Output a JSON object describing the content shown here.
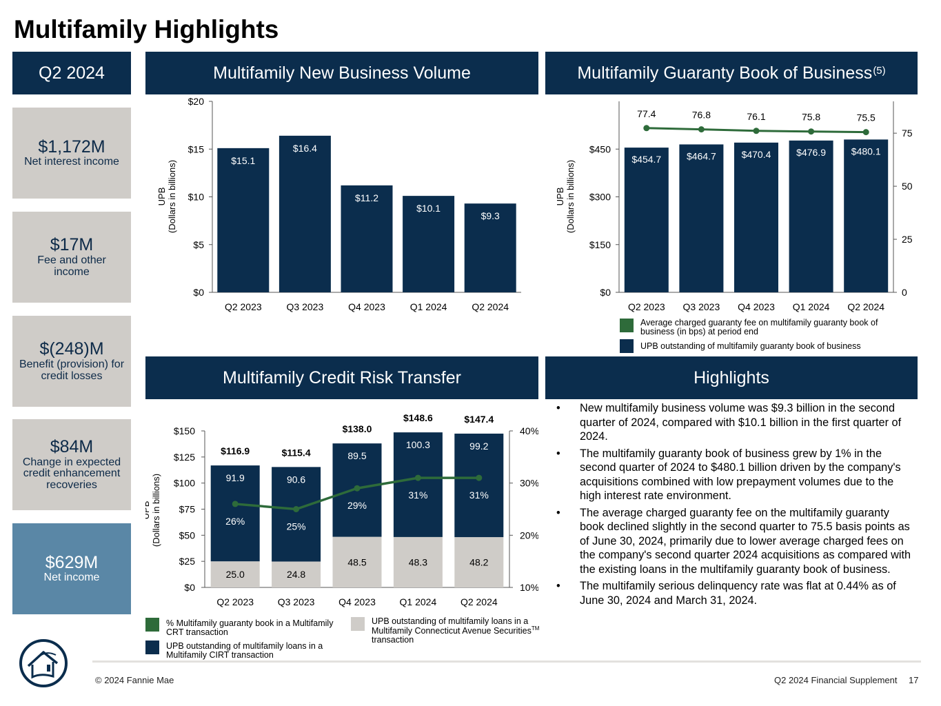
{
  "page": {
    "title": "Multifamily Highlights",
    "footer_left": "© 2024 Fannie Mae",
    "footer_right": "Q2 2024 Financial Supplement",
    "page_number": "17"
  },
  "quarter_panel": {
    "header": "Q2 2024",
    "kpis": [
      {
        "value": "$1,172M",
        "label": "Net interest income"
      },
      {
        "value": "$17M",
        "label": "Fee and other income"
      },
      {
        "value": "$(248)M",
        "label": "Benefit (provision) for credit losses"
      },
      {
        "value": "$84M",
        "label": "Change in expected credit enhancement recoveries"
      },
      {
        "value": "$629M",
        "label": "Net income"
      }
    ]
  },
  "headers": {
    "new_business": "Multifamily New Business Volume",
    "guaranty_book": "Multifamily Guaranty Book of Business",
    "guaranty_book_note": "(5)",
    "crt": "Multifamily Credit Risk Transfer",
    "highlights": "Highlights"
  },
  "legends": {
    "guaranty_fee": "Average charged guaranty fee on multifamily guaranty book of business (in bps) at period end",
    "guaranty_upb": "UPB outstanding of multifamily guaranty book of business",
    "crt_pct": "% Multifamily guaranty book in a Multifamily CRT transaction",
    "crt_cirt": "UPB outstanding of multifamily loans in a Multifamily CIRT transaction",
    "crt_cas": "UPB outstanding of multifamily loans in a Multifamily Connecticut Avenue Securities",
    "crt_cas_tm": "TM",
    "crt_cas_suffix": "transaction"
  },
  "highlights": [
    "New multifamily business volume was $9.3 billion in the second quarter of 2024, compared with $10.1 billion in the first quarter of 2024.",
    "The multifamily guaranty book of business grew by 1% in the second quarter of 2024 to $480.1 billion driven by the company's acquisitions combined with low prepayment volumes due to the high interest rate environment.",
    "The average charged guaranty fee on the multifamily guaranty book declined slightly in the second quarter to 75.5 basis points as of June 30, 2024, primarily due to lower average charged fees on the company's second quarter 2024 acquisitions as compared with the existing loans in the multifamily guaranty book of business.",
    "The multifamily serious delinquency rate was flat at 0.44% as of June 30, 2024 and March 31, 2024."
  ],
  "colors": {
    "navy": "#0b2d4d",
    "green": "#2e6b3a",
    "gray": "#cfccc8",
    "kpi_blue": "#5a87a6"
  },
  "chart_data": [
    {
      "id": "new_business_volume",
      "type": "bar",
      "categories": [
        "Q2 2023",
        "Q3 2023",
        "Q4 2023",
        "Q1 2024",
        "Q2 2024"
      ],
      "values": [
        15.1,
        16.4,
        11.2,
        10.1,
        9.3
      ],
      "data_labels": [
        "$15.1",
        "$16.4",
        "$11.2",
        "$10.1",
        "$9.3"
      ],
      "ylabel": "UPB\n(Dollars in billions)",
      "ylabel_lines": [
        "UPB",
        "(Dollars in billions)"
      ],
      "ylim": [
        0,
        20
      ],
      "yticks": [
        0,
        5,
        10,
        15,
        20
      ],
      "ytick_labels": [
        "$0",
        "$5",
        "$10",
        "$15",
        "$20"
      ]
    },
    {
      "id": "guaranty_book",
      "type": "bar",
      "categories": [
        "Q2 2023",
        "Q3 2023",
        "Q4 2023",
        "Q1 2024",
        "Q2 2024"
      ],
      "series": [
        {
          "name": "UPB outstanding of multifamily guaranty book of business",
          "axis": "left",
          "type": "bar",
          "values": [
            454.7,
            464.7,
            470.4,
            476.9,
            480.1
          ],
          "labels": [
            "$454.7",
            "$464.7",
            "$470.4",
            "$476.9",
            "$480.1"
          ]
        },
        {
          "name": "Average charged guaranty fee on multifamily guaranty book of business (in bps) at period end",
          "axis": "right",
          "type": "line",
          "values": [
            77.4,
            76.8,
            76.1,
            75.8,
            75.5
          ],
          "labels": [
            "77.4",
            "76.8",
            "76.1",
            "75.8",
            "75.5"
          ]
        }
      ],
      "ylabel_lines": [
        "UPB",
        "(Dollars in billions)"
      ],
      "ylim": [
        0,
        600
      ],
      "yticks": [
        0,
        150,
        300,
        450
      ],
      "ytick_labels": [
        "$0",
        "$150",
        "$300",
        "$450"
      ],
      "y2lim": [
        0,
        90
      ],
      "y2ticks": [
        0,
        25,
        50,
        75
      ],
      "y2tick_labels": [
        "0",
        "25",
        "50",
        "75"
      ]
    },
    {
      "id": "credit_risk_transfer",
      "type": "bar",
      "stacked": true,
      "categories": [
        "Q2 2023",
        "Q3 2023",
        "Q4 2023",
        "Q1 2024",
        "Q2 2024"
      ],
      "series": [
        {
          "name": "UPB outstanding of multifamily loans in a Multifamily Connecticut Avenue Securities transaction",
          "type": "bar",
          "values": [
            25.0,
            24.8,
            48.5,
            48.3,
            48.2
          ],
          "labels": [
            "25.0",
            "24.8",
            "48.5",
            "48.3",
            "48.2"
          ]
        },
        {
          "name": "UPB outstanding of multifamily loans in a Multifamily CIRT transaction",
          "type": "bar",
          "values": [
            91.9,
            90.6,
            89.5,
            100.3,
            99.2
          ],
          "labels": [
            "91.9",
            "90.6",
            "89.5",
            "100.3",
            "99.2"
          ]
        },
        {
          "name": "% Multifamily guaranty book in a Multifamily CRT transaction",
          "type": "line",
          "axis": "right",
          "values": [
            26,
            25,
            29,
            31,
            31
          ],
          "labels": [
            "26%",
            "25%",
            "29%",
            "31%",
            "31%"
          ]
        }
      ],
      "totals": [
        116.9,
        115.4,
        138.0,
        148.6,
        147.4
      ],
      "total_labels": [
        "$116.9",
        "$115.4",
        "$138.0",
        "$148.6",
        "$147.4"
      ],
      "ylabel_lines": [
        "UPB",
        "(Dollars in billions)"
      ],
      "ylim": [
        0,
        150
      ],
      "yticks": [
        0,
        25,
        50,
        75,
        100,
        125,
        150
      ],
      "ytick_labels": [
        "$0",
        "$25",
        "$50",
        "$75",
        "$100",
        "$125",
        "$150"
      ],
      "y2lim": [
        10,
        40
      ],
      "y2ticks": [
        10,
        20,
        30,
        40
      ],
      "y2tick_labels": [
        "10%",
        "20%",
        "30%",
        "40%"
      ]
    }
  ]
}
